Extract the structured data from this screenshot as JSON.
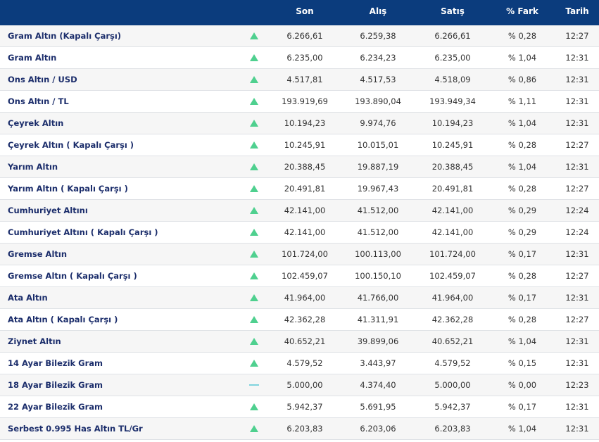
{
  "table": {
    "header": [
      "Son",
      "Alış",
      "Satış",
      "% Fark",
      "Tarih"
    ],
    "rows": [
      {
        "trend": "up",
        "cells": [
          "Gram Altın (Kapalı Çarşı)",
          "6.266,61",
          "6.259,38",
          "6.266,61",
          "% 0,28",
          "12:27"
        ]
      },
      {
        "trend": "up",
        "cells": [
          "Gram Altın",
          "6.235,00",
          "6.234,23",
          "6.235,00",
          "% 1,04",
          "12:31"
        ]
      },
      {
        "trend": "up",
        "cells": [
          "Ons Altın / USD",
          "4.517,81",
          "4.517,53",
          "4.518,09",
          "% 0,86",
          "12:31"
        ]
      },
      {
        "trend": "up",
        "cells": [
          "Ons Altın / TL",
          "193.919,69",
          "193.890,04",
          "193.949,34",
          "% 1,11",
          "12:31"
        ]
      },
      {
        "trend": "up",
        "cells": [
          "Çeyrek Altın",
          "10.194,23",
          "9.974,76",
          "10.194,23",
          "% 1,04",
          "12:31"
        ]
      },
      {
        "trend": "up",
        "cells": [
          "Çeyrek Altın ( Kapalı Çarşı )",
          "10.245,91",
          "10.015,01",
          "10.245,91",
          "% 0,28",
          "12:27"
        ]
      },
      {
        "trend": "up",
        "cells": [
          "Yarım Altın",
          "20.388,45",
          "19.887,19",
          "20.388,45",
          "% 1,04",
          "12:31"
        ]
      },
      {
        "trend": "up",
        "cells": [
          "Yarım Altın ( Kapalı Çarşı )",
          "20.491,81",
          "19.967,43",
          "20.491,81",
          "% 0,28",
          "12:27"
        ]
      },
      {
        "trend": "up",
        "cells": [
          "Cumhuriyet Altını",
          "42.141,00",
          "41.512,00",
          "42.141,00",
          "% 0,29",
          "12:24"
        ]
      },
      {
        "trend": "up",
        "cells": [
          "Cumhuriyet Altını ( Kapalı Çarşı )",
          "42.141,00",
          "41.512,00",
          "42.141,00",
          "% 0,29",
          "12:24"
        ]
      },
      {
        "trend": "up",
        "cells": [
          "Gremse Altın",
          "101.724,00",
          "100.113,00",
          "101.724,00",
          "% 0,17",
          "12:31"
        ]
      },
      {
        "trend": "up",
        "cells": [
          "Gremse Altın ( Kapalı Çarşı )",
          "102.459,07",
          "100.150,10",
          "102.459,07",
          "% 0,28",
          "12:27"
        ]
      },
      {
        "trend": "up",
        "cells": [
          "Ata Altın",
          "41.964,00",
          "41.766,00",
          "41.964,00",
          "% 0,17",
          "12:31"
        ]
      },
      {
        "trend": "up",
        "cells": [
          "Ata Altın ( Kapalı Çarşı )",
          "42.362,28",
          "41.311,91",
          "42.362,28",
          "% 0,28",
          "12:27"
        ]
      },
      {
        "trend": "up",
        "cells": [
          "Ziynet Altın",
          "40.652,21",
          "39.899,06",
          "40.652,21",
          "% 1,04",
          "12:31"
        ]
      },
      {
        "trend": "up",
        "cells": [
          "14 Ayar Bilezik Gram",
          "4.579,52",
          "3.443,97",
          "4.579,52",
          "% 0,15",
          "12:31"
        ]
      },
      {
        "trend": "flat",
        "cells": [
          "18 Ayar Bilezik Gram",
          "5.000,00",
          "4.374,40",
          "5.000,00",
          "% 0,00",
          "12:23"
        ]
      },
      {
        "trend": "up",
        "cells": [
          "22 Ayar Bilezik Gram",
          "5.942,37",
          "5.691,95",
          "5.942,37",
          "% 0,17",
          "12:31"
        ]
      },
      {
        "trend": "up",
        "cells": [
          "Serbest 0.995 Has Altın TL/Gr",
          "6.203,83",
          "6.203,06",
          "6.203,83",
          "% 1,04",
          "12:31"
        ]
      }
    ]
  }
}
